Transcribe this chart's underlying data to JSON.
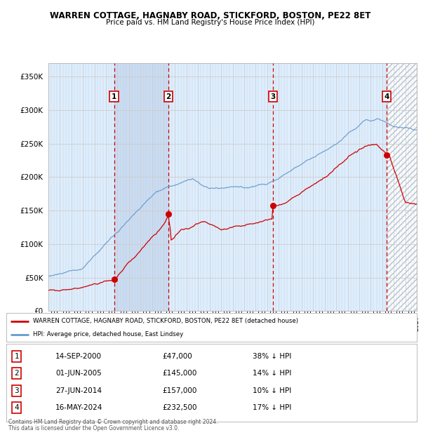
{
  "title": "WARREN COTTAGE, HAGNABY ROAD, STICKFORD, BOSTON, PE22 8ET",
  "subtitle": "Price paid vs. HM Land Registry's House Price Index (HPI)",
  "ytick_values": [
    0,
    50000,
    100000,
    150000,
    200000,
    250000,
    300000,
    350000
  ],
  "ylim": [
    0,
    370000
  ],
  "xlim_start": 1995.0,
  "xlim_end": 2027.0,
  "transactions": [
    {
      "num": 1,
      "date": "14-SEP-2000",
      "year": 2000.71,
      "price": 47000,
      "label": "38% ↓ HPI"
    },
    {
      "num": 2,
      "date": "01-JUN-2005",
      "year": 2005.42,
      "price": 145000,
      "label": "14% ↓ HPI"
    },
    {
      "num": 3,
      "date": "27-JUN-2014",
      "year": 2014.49,
      "price": 157000,
      "label": "10% ↓ HPI"
    },
    {
      "num": 4,
      "date": "16-MAY-2024",
      "year": 2024.38,
      "price": 232500,
      "label": "17% ↓ HPI"
    }
  ],
  "legend_line1": "WARREN COTTAGE, HAGNABY ROAD, STICKFORD, BOSTON, PE22 8ET (detached house)",
  "legend_line2": "HPI: Average price, detached house, East Lindsey",
  "footer_line1": "Contains HM Land Registry data © Crown copyright and database right 2024.",
  "footer_line2": "This data is licensed under the Open Government Licence v3.0.",
  "red_color": "#cc0000",
  "blue_color": "#6699cc",
  "bg_color": "#ddeeff",
  "hatch_color": "#aabbcc",
  "grid_color": "#cccccc"
}
